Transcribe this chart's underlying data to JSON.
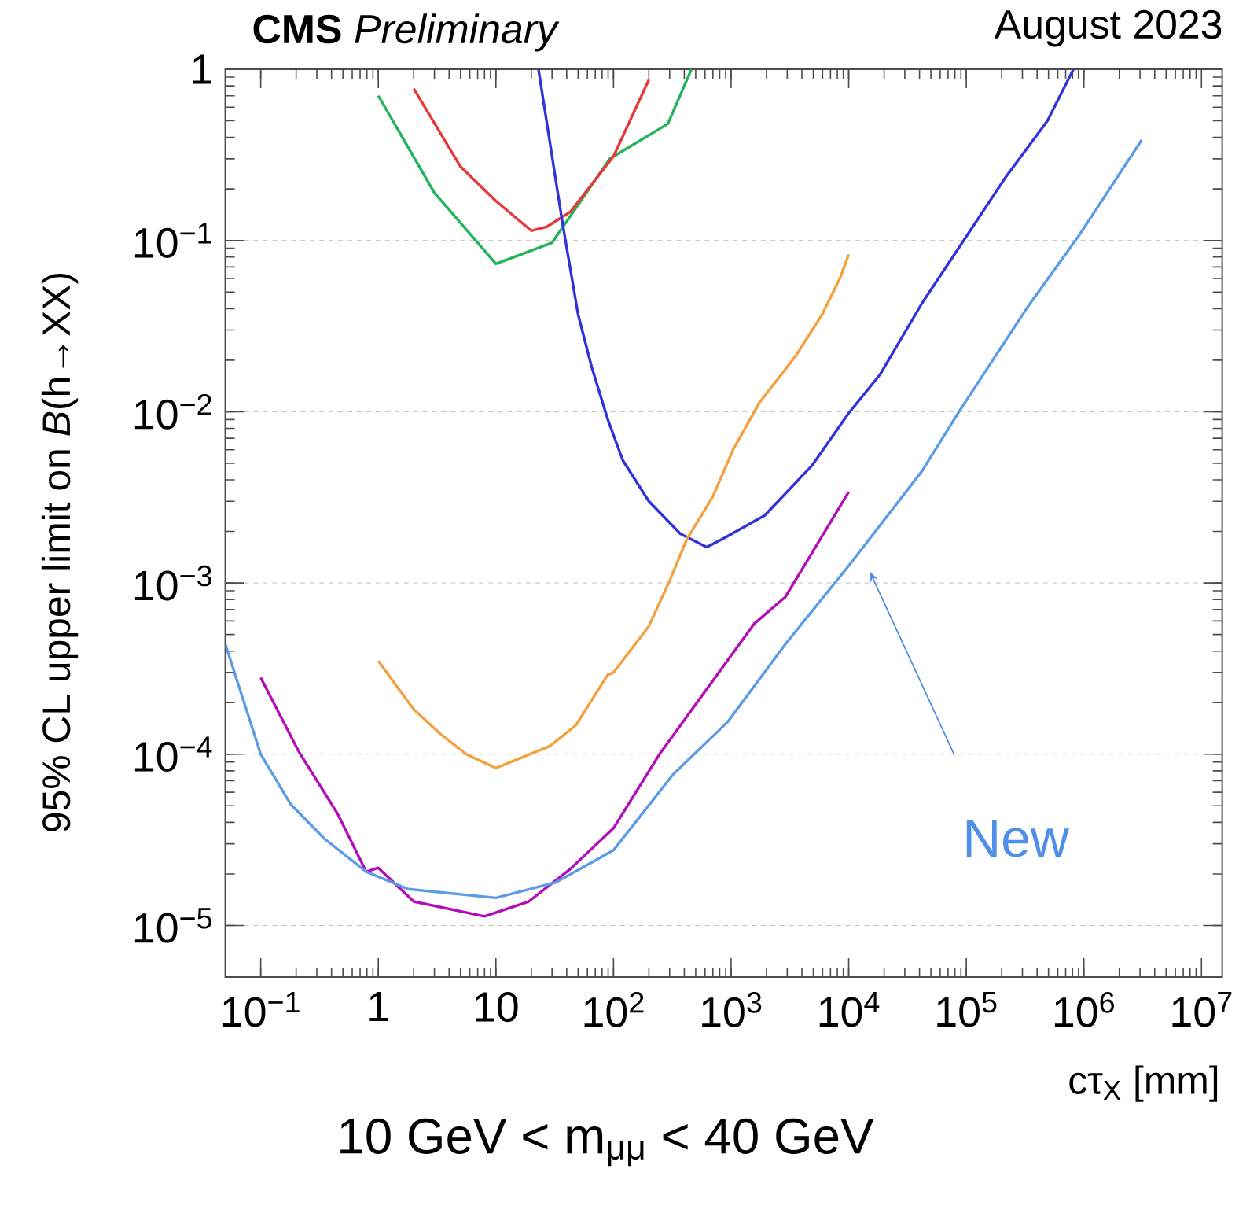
{
  "chart_data": {
    "type": "line",
    "title": "**CMS** *Preliminary*",
    "subtitle": "August 2023",
    "xlabel": "cτ$_{X}$ [mm]",
    "ylabel": "95% CL upper limit on  *B*(h→XX)",
    "log": "xy",
    "grid": "y",
    "xlim": [
      0.05,
      15000000
    ],
    "ylim": [
      5e-06,
      1
    ],
    "xticks": [
      {
        "value": 0.1,
        "label": "10$^{−1}$"
      },
      1,
      10,
      {
        "value": 100,
        "label": "10$^{2}$"
      },
      {
        "value": 1000,
        "label": "10$^{3}$"
      },
      {
        "value": 10000,
        "label": "10$^{4}$"
      },
      {
        "value": 100000,
        "label": "10$^{5}$"
      },
      {
        "value": 1000000,
        "label": "10$^{6}$"
      },
      {
        "value": 10000000,
        "label": "10$^{7}$"
      }
    ],
    "yticks": [
      {
        "value": 1e-05,
        "label": "10$^{−5}$"
      },
      {
        "value": 0.0001,
        "label": "10$^{−4}$"
      },
      {
        "value": 0.001,
        "label": "10$^{−3}$"
      },
      {
        "value": 0.01,
        "label": "10$^{−2}$"
      },
      {
        "value": 0.1,
        "label": "10$^{−1}$"
      },
      1
    ],
    "series": [
      {
        "color": "#22b45a",
        "x": [
          1,
          3,
          10,
          30,
          93,
          290,
          460
        ],
        "values": [
          0.7,
          0.19,
          0.073,
          0.097,
          0.3,
          0.48,
          1.0
        ]
      },
      {
        "color": "#e8393a",
        "x": [
          2,
          5,
          10,
          20,
          27,
          43,
          100,
          200
        ],
        "values": [
          0.77,
          0.27,
          0.17,
          0.114,
          0.12,
          0.147,
          0.31,
          0.87
        ]
      },
      {
        "color": "#3232dc",
        "x": [
          23,
          37,
          50,
          65,
          89,
          120,
          200,
          370,
          620,
          850,
          1930,
          4850,
          10000,
          18600,
          42000,
          95000,
          215000,
          490000,
          815000
        ],
        "values": [
          1.0,
          0.124,
          0.037,
          0.0184,
          0.0091,
          0.0052,
          0.003,
          0.00194,
          0.00162,
          0.00181,
          0.00248,
          0.00483,
          0.0098,
          0.0166,
          0.043,
          0.1,
          0.233,
          0.5,
          1.0
        ]
      },
      {
        "color": "#f5a040",
        "x": [
          1,
          2,
          3.3,
          5.6,
          10,
          29,
          48,
          89,
          100,
          200,
          300,
          420,
          700,
          1040,
          1740,
          3550,
          5950,
          8500,
          10000
        ],
        "values": [
          0.00035,
          0.000183,
          0.000133,
          0.0001,
          8.3e-05,
          0.000112,
          0.000148,
          0.00029,
          0.0003,
          0.00056,
          0.00103,
          0.0018,
          0.0032,
          0.006,
          0.0113,
          0.0212,
          0.037,
          0.061,
          0.083
        ]
      },
      {
        "color": "#b30cb8",
        "x": [
          0.1,
          0.21,
          0.45,
          0.79,
          1,
          2,
          8,
          19,
          43,
          100,
          246,
          1580,
          2900,
          10000
        ],
        "values": [
          0.00028,
          0.000104,
          4.5e-05,
          2.06e-05,
          2.17e-05,
          1.38e-05,
          1.13e-05,
          1.38e-05,
          2.14e-05,
          3.7e-05,
          0.0001,
          0.00058,
          0.00083,
          0.0034
        ]
      },
      {
        "color": "#5c9ce6",
        "x": [
          0.05,
          0.1,
          0.18,
          0.35,
          0.79,
          1.8,
          10,
          32,
          100,
          320,
          940,
          2900,
          10000,
          42000,
          85000,
          325000,
          910000,
          3100000
        ],
        "values": [
          0.00044,
          0.0001,
          5.1e-05,
          3.2e-05,
          2.06e-05,
          1.63e-05,
          1.45e-05,
          1.78e-05,
          2.75e-05,
          7.6e-05,
          0.000155,
          0.00044,
          0.00126,
          0.0045,
          0.0098,
          0.04,
          0.107,
          0.386
        ]
      }
    ],
    "annotations": [
      "New",
      "10 GeV < m$_{μμ}$ < 40 GeV"
    ]
  }
}
